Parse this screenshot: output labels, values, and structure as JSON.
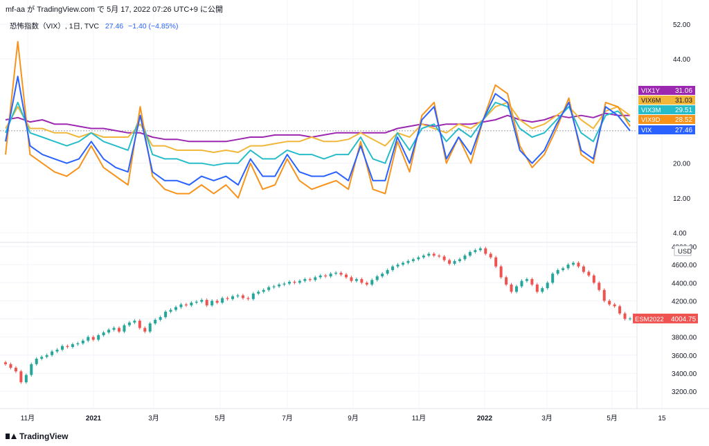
{
  "header": {
    "publisher": "mf-aa が TradingView.com で 5月 17, 2022 07:26 UTC+9 に公開",
    "symbol": "恐怖指数（VIX）, 1日, TVC",
    "last": "27.46",
    "change": "−1.40 (−4.85%)"
  },
  "footer": {
    "brand": "TradingView"
  },
  "chart_data": [
    {
      "type": "line",
      "ylim": [
        0,
        54
      ],
      "yticks": [
        "52.00",
        "44.00",
        "20.00",
        "12.00",
        "4.00"
      ],
      "ytick_values": [
        52,
        44,
        20,
        12,
        4
      ],
      "series": [
        {
          "name": "VIX1Y",
          "color": "#9c27b0",
          "last_label": "31.06",
          "values": [
            30,
            30.5,
            29.5,
            30,
            29,
            29,
            28.5,
            28,
            28,
            27.5,
            27,
            27,
            26,
            25.5,
            25.5,
            25,
            25,
            25,
            25,
            25.5,
            26,
            26,
            26.5,
            26.5,
            26.5,
            26,
            26.5,
            27,
            27,
            27,
            27,
            27,
            28,
            28.5,
            29,
            28.5,
            29,
            29,
            29,
            29.5,
            30,
            31,
            30,
            29.5,
            30,
            31,
            30.5,
            31,
            30.5,
            31.5,
            31,
            31
          ]
        },
        {
          "name": "VIX6M",
          "color": "#f0b73a",
          "last_label": "31.03",
          "values": [
            28,
            33,
            28,
            28,
            27,
            27,
            26,
            27,
            26,
            26,
            26,
            29,
            24,
            24,
            23,
            23,
            23,
            22.5,
            23,
            22.5,
            24,
            24,
            24.5,
            25,
            25,
            26,
            25,
            25,
            25.5,
            27,
            25.5,
            24,
            27,
            26,
            29,
            28,
            27,
            29,
            28,
            30,
            33,
            34,
            30,
            28,
            29,
            31,
            33,
            30,
            28,
            32,
            33,
            31
          ]
        },
        {
          "name": "VIX3M",
          "color": "#26bcc9",
          "last_label": "29.51",
          "values": [
            27,
            34,
            27,
            26,
            25,
            24,
            25,
            27,
            25,
            24,
            23,
            31,
            22,
            21,
            21,
            20,
            20,
            19.5,
            20,
            20,
            23,
            21,
            21,
            23,
            22,
            22,
            21,
            22,
            22,
            26,
            21,
            20,
            27,
            23,
            28,
            29,
            25,
            28,
            26,
            30,
            34,
            33,
            28,
            26,
            27,
            30,
            33,
            27,
            25,
            31,
            32,
            29.5
          ]
        },
        {
          "name": "VIX9D",
          "color": "#f7931a",
          "last_label": "28.52",
          "values": [
            22,
            48,
            22,
            20,
            18,
            17,
            19,
            24,
            19,
            17,
            15,
            33,
            17,
            14,
            13,
            13,
            15,
            13,
            15,
            12,
            20,
            14,
            15,
            21,
            16,
            14,
            15,
            16,
            14,
            25,
            14,
            13,
            25,
            18,
            31,
            34,
            20,
            26,
            20,
            30,
            38,
            36,
            24,
            19,
            22,
            28,
            35,
            22,
            20,
            34,
            33,
            28.5
          ]
        },
        {
          "name": "VIX",
          "color": "#2962ff",
          "last_label": "27.46",
          "values": [
            25,
            40,
            24,
            22,
            21,
            20,
            21,
            25,
            21,
            19,
            18,
            31,
            18,
            16,
            16,
            15,
            17,
            16,
            17,
            15,
            21,
            17,
            17,
            22,
            18,
            17,
            17,
            18,
            16,
            24,
            16,
            16,
            26,
            20,
            30,
            33,
            21,
            26,
            22,
            30,
            36,
            34,
            23,
            20,
            23,
            29,
            34,
            23,
            21,
            33,
            31,
            27.46
          ]
        }
      ]
    },
    {
      "type": "candlestick",
      "ylim": [
        3100,
        4900
      ],
      "yticks": [
        "4800.00",
        "4600.00",
        "4400.00",
        "4200.00",
        "4000.00",
        "3800.00",
        "3600.00",
        "3400.00",
        "3200.00"
      ],
      "ytick_values": [
        4800,
        4600,
        4400,
        4200,
        4000,
        3800,
        3600,
        3400,
        3200
      ],
      "unit": "USD",
      "name": "ESM2022",
      "last_label": "4004.75",
      "closes": [
        3500,
        3460,
        3420,
        3300,
        3380,
        3500,
        3560,
        3580,
        3600,
        3640,
        3660,
        3700,
        3690,
        3720,
        3730,
        3760,
        3800,
        3770,
        3820,
        3850,
        3880,
        3900,
        3860,
        3930,
        3960,
        3980,
        3900,
        3860,
        3950,
        3990,
        4020,
        4080,
        4100,
        4130,
        4160,
        4150,
        4180,
        4190,
        4210,
        4150,
        4200,
        4180,
        4230,
        4220,
        4250,
        4260,
        4230,
        4220,
        4280,
        4300,
        4320,
        4350,
        4360,
        4380,
        4390,
        4410,
        4400,
        4420,
        4440,
        4430,
        4460,
        4480,
        4470,
        4500,
        4510,
        4490,
        4460,
        4420,
        4440,
        4400,
        4380,
        4430,
        4470,
        4500,
        4540,
        4580,
        4600,
        4620,
        4640,
        4660,
        4680,
        4700,
        4720,
        4700,
        4690,
        4650,
        4610,
        4640,
        4660,
        4700,
        4740,
        4760,
        4780,
        4720,
        4680,
        4580,
        4460,
        4380,
        4300,
        4360,
        4420,
        4440,
        4380,
        4300,
        4340,
        4400,
        4500,
        4540,
        4560,
        4600,
        4620,
        4580,
        4520,
        4480,
        4400,
        4320,
        4200,
        4160,
        4140,
        4060,
        4000,
        4004.75
      ],
      "xticks": [
        "11月",
        "2021",
        "3月",
        "5月",
        "7月",
        "9月",
        "11月",
        "2022",
        "3月",
        "5月",
        "15"
      ]
    }
  ]
}
